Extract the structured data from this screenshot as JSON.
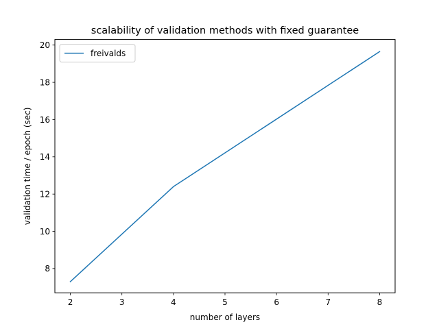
{
  "chart_data": {
    "type": "line",
    "title": "scalability of validation methods with fixed guarantee",
    "xlabel": "number of layers",
    "ylabel": "validation time / epoch (sec)",
    "xlim": [
      1.7,
      8.3
    ],
    "ylim": [
      6.7,
      20.3
    ],
    "xticks": [
      2,
      3,
      4,
      5,
      6,
      7,
      8
    ],
    "xtick_labels": [
      "2",
      "3",
      "4",
      "5",
      "6",
      "7",
      "8"
    ],
    "yticks": [
      8,
      10,
      12,
      14,
      16,
      18,
      20
    ],
    "ytick_labels": [
      "8",
      "10",
      "12",
      "14",
      "16",
      "18",
      "20"
    ],
    "grid": false,
    "legend_position": "top-left",
    "series": [
      {
        "name": "freivalds",
        "color": "#1f77b4",
        "x": [
          2,
          4,
          8
        ],
        "y": [
          7.3,
          12.4,
          19.65
        ]
      }
    ]
  }
}
